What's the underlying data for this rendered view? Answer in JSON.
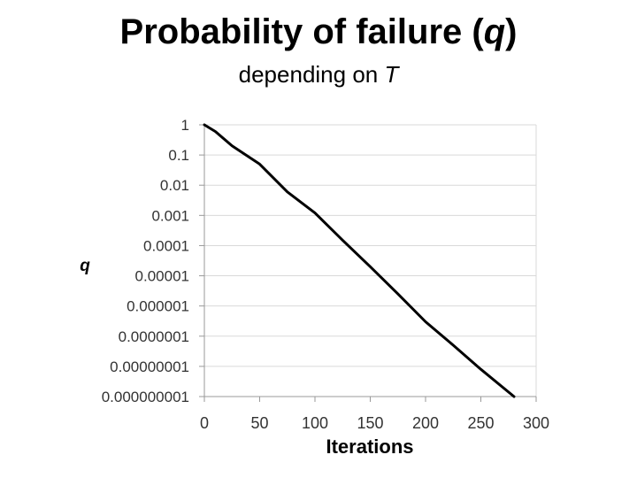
{
  "header": {
    "title_main": "Probability of failure (",
    "title_var": "q",
    "title_close": ")",
    "subtitle_main": "depending on ",
    "subtitle_var": "T"
  },
  "colors": {
    "line": "#000000",
    "grid": "#d9d9d9",
    "text": "#333333"
  },
  "chart_data": {
    "type": "line",
    "title": "",
    "xlabel": "Iterations",
    "ylabel": "q",
    "y_scale": "log",
    "grid": true,
    "xlim": [
      0,
      300
    ],
    "ylim": [
      1e-09,
      1
    ],
    "x_ticks": [
      0,
      50,
      100,
      150,
      200,
      250,
      300
    ],
    "x_tick_labels": [
      "0",
      "50",
      "100",
      "150",
      "200",
      "250",
      "300"
    ],
    "y_ticks": [
      1,
      0.1,
      0.01,
      0.001,
      0.0001,
      1e-05,
      1e-06,
      1e-07,
      1e-08,
      1e-09
    ],
    "y_tick_labels": [
      "1",
      "0.1",
      "0.01",
      "0.001",
      "0.0001",
      "0.00001",
      "0.000001",
      "0.0000001",
      "0.00000001",
      "0.000000001"
    ],
    "series": [
      {
        "x": [
          0,
          10,
          25,
          50,
          75,
          100,
          125,
          150,
          175,
          200,
          225,
          250,
          280
        ],
        "y": [
          1,
          0.6,
          0.2,
          0.05,
          0.006,
          0.0012,
          0.00015,
          2e-05,
          2.5e-06,
          3e-07,
          5e-08,
          8e-09,
          1e-09
        ]
      }
    ]
  }
}
